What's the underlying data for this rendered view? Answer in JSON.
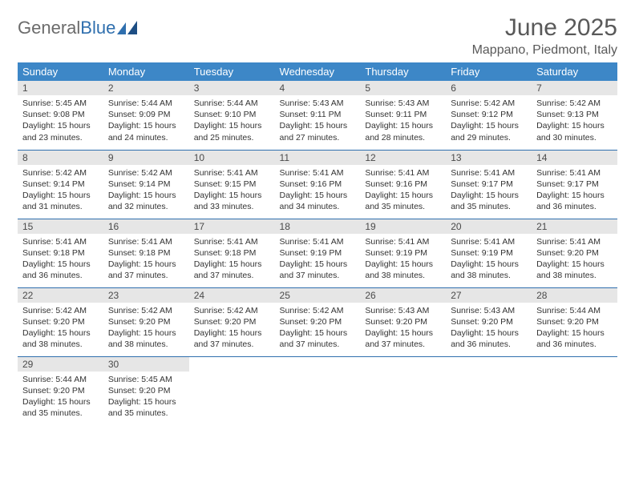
{
  "brand": {
    "word1": "General",
    "word2": "Blue"
  },
  "title": "June 2025",
  "location": "Mappano, Piedmont, Italy",
  "colors": {
    "header_bg": "#3d87c7",
    "header_text": "#ffffff",
    "daynum_bg": "#e6e6e6",
    "rule": "#2f6fae",
    "title_color": "#595959",
    "logo_gray": "#6b6b6b",
    "logo_blue": "#2f6fae"
  },
  "weekdays": [
    "Sunday",
    "Monday",
    "Tuesday",
    "Wednesday",
    "Thursday",
    "Friday",
    "Saturday"
  ],
  "weeks": [
    [
      {
        "n": "1",
        "sr": "5:45 AM",
        "ss": "9:08 PM",
        "dl": "15 hours and 23 minutes."
      },
      {
        "n": "2",
        "sr": "5:44 AM",
        "ss": "9:09 PM",
        "dl": "15 hours and 24 minutes."
      },
      {
        "n": "3",
        "sr": "5:44 AM",
        "ss": "9:10 PM",
        "dl": "15 hours and 25 minutes."
      },
      {
        "n": "4",
        "sr": "5:43 AM",
        "ss": "9:11 PM",
        "dl": "15 hours and 27 minutes."
      },
      {
        "n": "5",
        "sr": "5:43 AM",
        "ss": "9:11 PM",
        "dl": "15 hours and 28 minutes."
      },
      {
        "n": "6",
        "sr": "5:42 AM",
        "ss": "9:12 PM",
        "dl": "15 hours and 29 minutes."
      },
      {
        "n": "7",
        "sr": "5:42 AM",
        "ss": "9:13 PM",
        "dl": "15 hours and 30 minutes."
      }
    ],
    [
      {
        "n": "8",
        "sr": "5:42 AM",
        "ss": "9:14 PM",
        "dl": "15 hours and 31 minutes."
      },
      {
        "n": "9",
        "sr": "5:42 AM",
        "ss": "9:14 PM",
        "dl": "15 hours and 32 minutes."
      },
      {
        "n": "10",
        "sr": "5:41 AM",
        "ss": "9:15 PM",
        "dl": "15 hours and 33 minutes."
      },
      {
        "n": "11",
        "sr": "5:41 AM",
        "ss": "9:16 PM",
        "dl": "15 hours and 34 minutes."
      },
      {
        "n": "12",
        "sr": "5:41 AM",
        "ss": "9:16 PM",
        "dl": "15 hours and 35 minutes."
      },
      {
        "n": "13",
        "sr": "5:41 AM",
        "ss": "9:17 PM",
        "dl": "15 hours and 35 minutes."
      },
      {
        "n": "14",
        "sr": "5:41 AM",
        "ss": "9:17 PM",
        "dl": "15 hours and 36 minutes."
      }
    ],
    [
      {
        "n": "15",
        "sr": "5:41 AM",
        "ss": "9:18 PM",
        "dl": "15 hours and 36 minutes."
      },
      {
        "n": "16",
        "sr": "5:41 AM",
        "ss": "9:18 PM",
        "dl": "15 hours and 37 minutes."
      },
      {
        "n": "17",
        "sr": "5:41 AM",
        "ss": "9:18 PM",
        "dl": "15 hours and 37 minutes."
      },
      {
        "n": "18",
        "sr": "5:41 AM",
        "ss": "9:19 PM",
        "dl": "15 hours and 37 minutes."
      },
      {
        "n": "19",
        "sr": "5:41 AM",
        "ss": "9:19 PM",
        "dl": "15 hours and 38 minutes."
      },
      {
        "n": "20",
        "sr": "5:41 AM",
        "ss": "9:19 PM",
        "dl": "15 hours and 38 minutes."
      },
      {
        "n": "21",
        "sr": "5:41 AM",
        "ss": "9:20 PM",
        "dl": "15 hours and 38 minutes."
      }
    ],
    [
      {
        "n": "22",
        "sr": "5:42 AM",
        "ss": "9:20 PM",
        "dl": "15 hours and 38 minutes."
      },
      {
        "n": "23",
        "sr": "5:42 AM",
        "ss": "9:20 PM",
        "dl": "15 hours and 38 minutes."
      },
      {
        "n": "24",
        "sr": "5:42 AM",
        "ss": "9:20 PM",
        "dl": "15 hours and 37 minutes."
      },
      {
        "n": "25",
        "sr": "5:42 AM",
        "ss": "9:20 PM",
        "dl": "15 hours and 37 minutes."
      },
      {
        "n": "26",
        "sr": "5:43 AM",
        "ss": "9:20 PM",
        "dl": "15 hours and 37 minutes."
      },
      {
        "n": "27",
        "sr": "5:43 AM",
        "ss": "9:20 PM",
        "dl": "15 hours and 36 minutes."
      },
      {
        "n": "28",
        "sr": "5:44 AM",
        "ss": "9:20 PM",
        "dl": "15 hours and 36 minutes."
      }
    ],
    [
      {
        "n": "29",
        "sr": "5:44 AM",
        "ss": "9:20 PM",
        "dl": "15 hours and 35 minutes."
      },
      {
        "n": "30",
        "sr": "5:45 AM",
        "ss": "9:20 PM",
        "dl": "15 hours and 35 minutes."
      },
      null,
      null,
      null,
      null,
      null
    ]
  ],
  "labels": {
    "sunrise": "Sunrise: ",
    "sunset": "Sunset: ",
    "daylight": "Daylight: "
  }
}
